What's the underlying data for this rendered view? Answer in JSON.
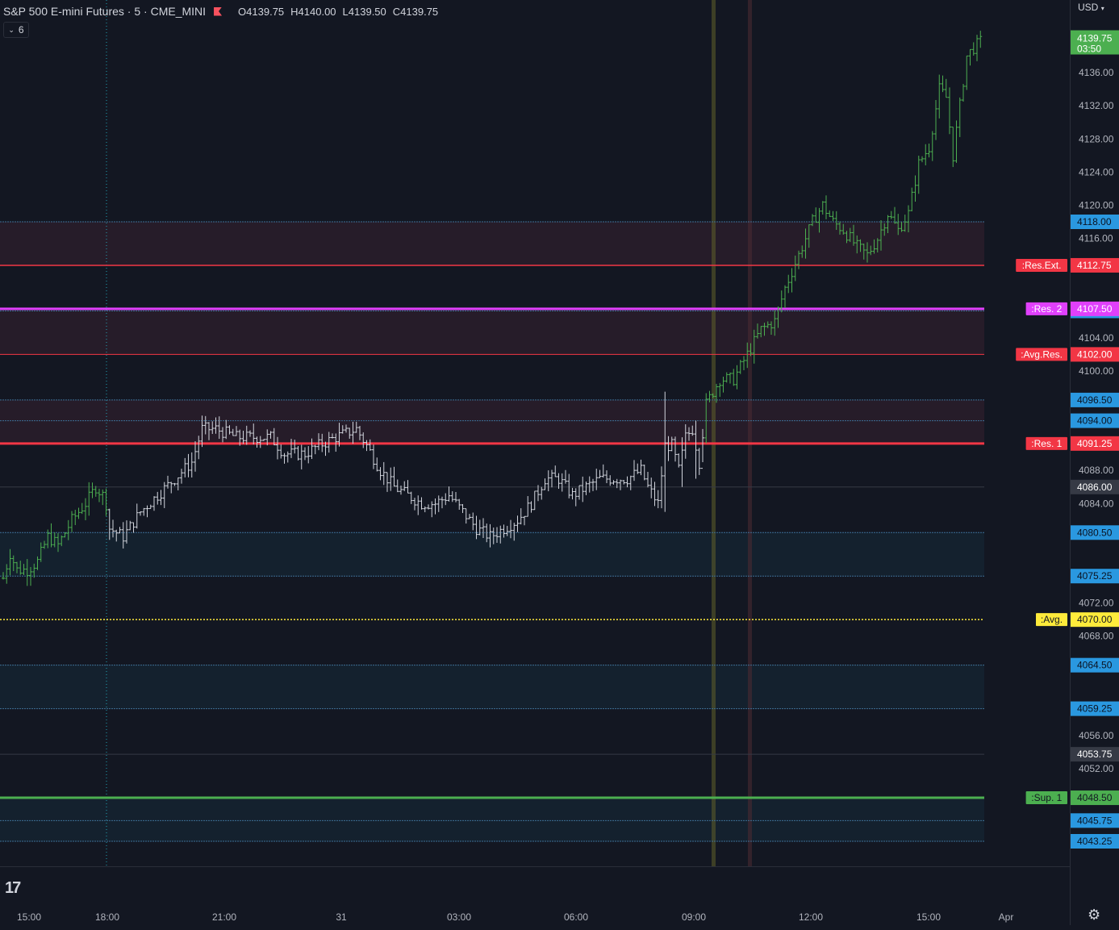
{
  "header": {
    "symbol": "S&P 500 E-mini Futures · 5 · CME_MINI",
    "open": "O4139.75",
    "high": "H4140.00",
    "low": "L4139.50",
    "close": "C4139.75",
    "collapse_count": "6",
    "currency": "USD"
  },
  "icons": {
    "logo": "TV",
    "settings": "gear-icon",
    "dropdown": "chevron-down-icon",
    "flag": "flag-icon"
  },
  "colors": {
    "background": "#131722",
    "bull": "#4caf50",
    "neutral": "#d1d4dc",
    "band_line": "#2962ff",
    "res": "#f23645",
    "res2": "#e040fb",
    "avg": "#ffeb3b",
    "sup": "#4caf50"
  },
  "chart_data": {
    "type": "ohlc",
    "ylim": [
      4040.5,
      4141.5
    ],
    "x_ticks": [
      "15:00",
      "18:00",
      "21:00",
      "31",
      "03:00",
      "06:00",
      "09:00",
      "12:00",
      "15:00",
      "Apr"
    ],
    "y_ticks": [
      "4136.00",
      "4132.00",
      "4128.00",
      "4124.00",
      "4120.00",
      "4116.00",
      "4104.00",
      "4100.00",
      "4088.00",
      "4084.00",
      "4072.00",
      "4068.00",
      "4056.00",
      "4052.00"
    ],
    "last_price": "4139.75",
    "countdown": "03:50",
    "bands": [
      {
        "from": 4112.75,
        "to": 4118.0,
        "fill": "res"
      },
      {
        "from": 4102.0,
        "to": 4107.5,
        "fill": "res"
      },
      {
        "from": 4091.25,
        "to": 4096.5,
        "fill": "res"
      },
      {
        "from": 4075.25,
        "to": 4080.5,
        "fill": "sup"
      },
      {
        "from": 4059.25,
        "to": 4064.5,
        "fill": "sup"
      },
      {
        "from": 4043.25,
        "to": 4048.5,
        "fill": "sup"
      }
    ],
    "levels": [
      {
        "name": ":Res.Ext.",
        "value": 4112.75,
        "display": "4112.75",
        "color": "#f23645",
        "style": "solid",
        "width": 1.5
      },
      {
        "name": ":Res. 2",
        "value": 4107.5,
        "display": "4107.50",
        "color": "#e040fb",
        "style": "solid",
        "width": 3
      },
      {
        "name": ":Avg.Res.",
        "value": 4102.0,
        "display": "4102.00",
        "color": "#f23645",
        "style": "solid",
        "width": 1
      },
      {
        "name": ":Res. 1",
        "value": 4091.25,
        "display": "4091.25",
        "color": "#f23645",
        "style": "solid",
        "width": 3
      },
      {
        "name": ":Avg.",
        "value": 4070.0,
        "display": "4070.00",
        "color": "#ffeb3b",
        "style": "dotted",
        "width": 1.5
      },
      {
        "name": ":Sup. 1",
        "value": 4048.5,
        "display": "4048.50",
        "color": "#4caf50",
        "style": "solid",
        "width": 3
      }
    ],
    "blue_lines": [
      {
        "value": 4118.0,
        "display": "4118.00"
      },
      {
        "value": 4107.25,
        "display": "4107.25"
      },
      {
        "value": 4096.5,
        "display": "4096.50"
      },
      {
        "value": 4094.0,
        "display": "4094.00"
      },
      {
        "value": 4080.5,
        "display": "4080.50"
      },
      {
        "value": 4075.25,
        "display": "4075.25"
      },
      {
        "value": 4064.5,
        "display": "4064.50"
      },
      {
        "value": 4059.25,
        "display": "4059.25"
      },
      {
        "value": 4045.75,
        "display": "4045.75"
      },
      {
        "value": 4043.25,
        "display": "4043.25"
      }
    ],
    "gray_lines": [
      {
        "value": 4086.0,
        "display": "4086.00"
      },
      {
        "value": 4053.75,
        "display": "4053.75"
      }
    ],
    "vertical_markers": [
      {
        "time": "18:00",
        "color": "#26c6da",
        "style": "dotted"
      },
      {
        "time": "09:30",
        "color": "#5a5a2a",
        "style": "solid"
      },
      {
        "time": "10:30",
        "color": "#4a2a32",
        "style": "solid"
      }
    ],
    "price_path": [
      {
        "t": 0,
        "p": 4075
      },
      {
        "t": 2,
        "p": 4078
      },
      {
        "t": 4,
        "p": 4076
      },
      {
        "t": 7,
        "p": 4076
      },
      {
        "t": 10,
        "p": 4077
      },
      {
        "t": 13,
        "p": 4080
      },
      {
        "t": 16,
        "p": 4079
      },
      {
        "t": 20,
        "p": 4082
      },
      {
        "t": 24,
        "p": 4084
      },
      {
        "t": 27,
        "p": 4086
      },
      {
        "t": 29,
        "p": 4085
      },
      {
        "t": 30,
        "p": 4084
      },
      {
        "t": 31,
        "p": 4081
      },
      {
        "t": 35,
        "p": 4080
      },
      {
        "t": 40,
        "p": 4083
      },
      {
        "t": 45,
        "p": 4085
      },
      {
        "t": 50,
        "p": 4087
      },
      {
        "t": 55,
        "p": 4089
      },
      {
        "t": 58,
        "p": 4093
      },
      {
        "t": 62,
        "p": 4093
      },
      {
        "t": 68,
        "p": 4092
      },
      {
        "t": 72,
        "p": 4092
      },
      {
        "t": 78,
        "p": 4092
      },
      {
        "t": 82,
        "p": 4090
      },
      {
        "t": 88,
        "p": 4090
      },
      {
        "t": 92,
        "p": 4091
      },
      {
        "t": 97,
        "p": 4092
      },
      {
        "t": 103,
        "p": 4093
      },
      {
        "t": 106,
        "p": 4091
      },
      {
        "t": 110,
        "p": 4088
      },
      {
        "t": 114,
        "p": 4086
      },
      {
        "t": 118,
        "p": 4085
      },
      {
        "t": 122,
        "p": 4084
      },
      {
        "t": 126,
        "p": 4084
      },
      {
        "t": 130,
        "p": 4085
      },
      {
        "t": 134,
        "p": 4083
      },
      {
        "t": 138,
        "p": 4081
      },
      {
        "t": 142,
        "p": 4080
      },
      {
        "t": 146,
        "p": 4081
      },
      {
        "t": 150,
        "p": 4082
      },
      {
        "t": 154,
        "p": 4084
      },
      {
        "t": 158,
        "p": 4087
      },
      {
        "t": 162,
        "p": 4087
      },
      {
        "t": 166,
        "p": 4085
      },
      {
        "t": 170,
        "p": 4086
      },
      {
        "t": 174,
        "p": 4087
      },
      {
        "t": 178,
        "p": 4087
      },
      {
        "t": 182,
        "p": 4087
      },
      {
        "t": 186,
        "p": 4088
      },
      {
        "t": 188,
        "p": 4086
      },
      {
        "t": 191,
        "p": 4084
      },
      {
        "t": 193,
        "p": 4091
      },
      {
        "t": 195,
        "p": 4091
      },
      {
        "t": 197,
        "p": 4088
      },
      {
        "t": 199,
        "p": 4092
      },
      {
        "t": 201,
        "p": 4093
      },
      {
        "t": 203,
        "p": 4089
      },
      {
        "t": 205,
        "p": 4096
      },
      {
        "t": 209,
        "p": 4099
      },
      {
        "t": 213,
        "p": 4099
      },
      {
        "t": 217,
        "p": 4102
      },
      {
        "t": 221,
        "p": 4105
      },
      {
        "t": 225,
        "p": 4106
      },
      {
        "t": 228,
        "p": 4110
      },
      {
        "t": 232,
        "p": 4114
      },
      {
        "t": 236,
        "p": 4118
      },
      {
        "t": 239,
        "p": 4120
      },
      {
        "t": 242,
        "p": 4118
      },
      {
        "t": 245,
        "p": 4117
      },
      {
        "t": 249,
        "p": 4115
      },
      {
        "t": 252,
        "p": 4114
      },
      {
        "t": 255,
        "p": 4116
      },
      {
        "t": 258,
        "p": 4119
      },
      {
        "t": 261,
        "p": 4117
      },
      {
        "t": 264,
        "p": 4119
      },
      {
        "t": 267,
        "p": 4125
      },
      {
        "t": 270,
        "p": 4127
      },
      {
        "t": 273,
        "p": 4134
      },
      {
        "t": 275,
        "p": 4133
      },
      {
        "t": 277,
        "p": 4126
      },
      {
        "t": 279,
        "p": 4132
      },
      {
        "t": 281,
        "p": 4138
      },
      {
        "t": 283,
        "p": 4139
      },
      {
        "t": 285,
        "p": 4139.75
      }
    ],
    "neutral_range": [
      31,
      204
    ]
  },
  "time_labels": [
    "15:00",
    "18:00",
    "21:00",
    "31",
    "03:00",
    "06:00",
    "09:00",
    "12:00",
    "15:00",
    "Apr"
  ]
}
